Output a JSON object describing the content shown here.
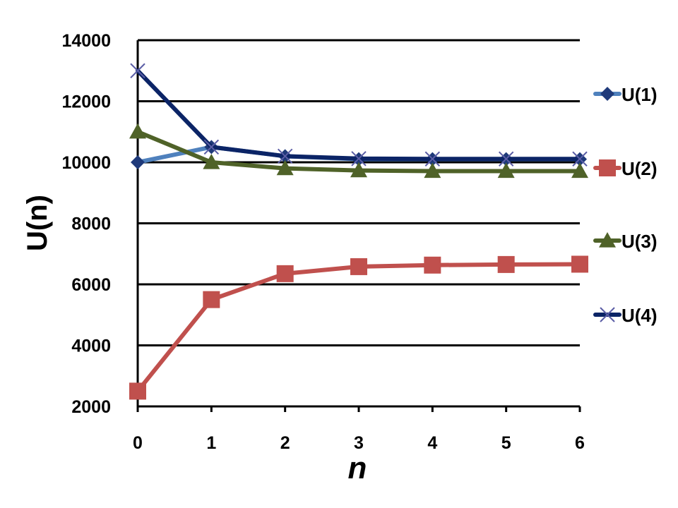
{
  "chart_data": {
    "type": "line",
    "x": [
      0,
      1,
      2,
      3,
      4,
      5,
      6
    ],
    "xlabel": "n",
    "ylabel": "U(n)",
    "xlim": [
      0,
      6
    ],
    "ylim": [
      2000,
      14000
    ],
    "yticks": [
      2000,
      4000,
      6000,
      8000,
      10000,
      12000,
      14000
    ],
    "grid": "horizontal",
    "legend_position": "right",
    "series": [
      {
        "name": "U(1)",
        "color": "#4F81BD",
        "marker": "diamond",
        "marker_color": "#1F3A7A",
        "values": [
          10000,
          10500,
          10200,
          10100,
          10100,
          10100,
          10100
        ]
      },
      {
        "name": "U(2)",
        "color": "#C0504D",
        "marker": "square",
        "marker_color": "#C0504D",
        "values": [
          2500,
          5500,
          6350,
          6580,
          6630,
          6650,
          6660
        ]
      },
      {
        "name": "U(3)",
        "color": "#4F6228",
        "marker": "triangle",
        "marker_color": "#4F6228",
        "values": [
          11000,
          10000,
          9800,
          9730,
          9710,
          9710,
          9710
        ]
      },
      {
        "name": "U(4)",
        "color": "#0B2466",
        "marker": "x",
        "marker_color": "#5B5EA6",
        "values": [
          13000,
          10500,
          10200,
          10120,
          10110,
          10110,
          10110
        ]
      }
    ]
  }
}
